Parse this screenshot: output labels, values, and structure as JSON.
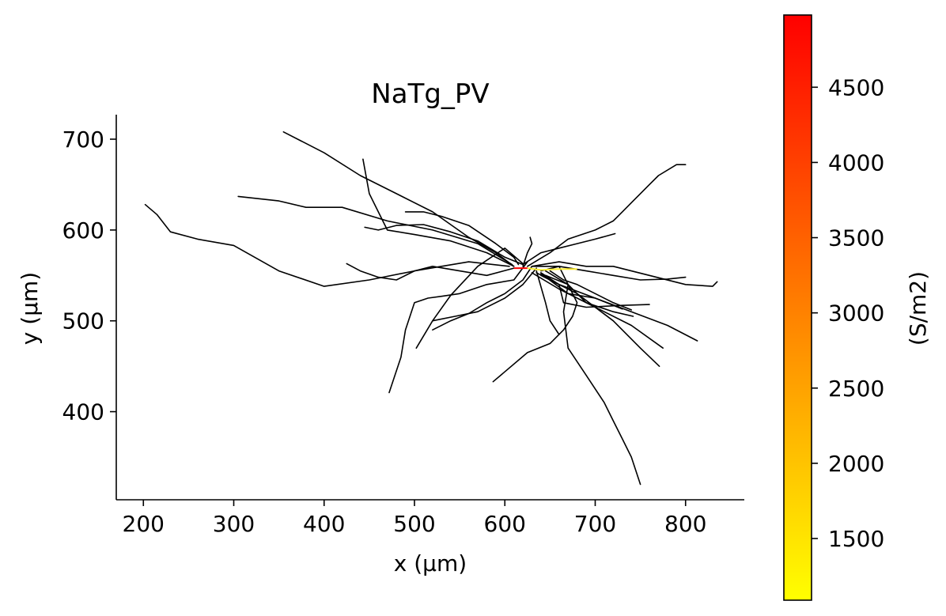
{
  "chart_data": {
    "type": "line",
    "title": "NaTg_PV",
    "xlabel": "x (µm)",
    "ylabel": "y (µm)",
    "xlim": [
      170,
      865
    ],
    "ylim": [
      303,
      727
    ],
    "xticks": [
      200,
      300,
      400,
      500,
      600,
      700,
      800
    ],
    "yticks": [
      400,
      500,
      600,
      700
    ],
    "grid": false,
    "line_color": "#000000",
    "colorbar": {
      "label": "(S/m2)",
      "range": [
        1090,
        4980
      ],
      "ticks": [
        1500,
        2000,
        2500,
        3000,
        3500,
        4000,
        4500
      ],
      "colors": [
        "#ffff00",
        "#ff0000"
      ]
    },
    "axon": [
      {
        "color": "#ff0000",
        "x": [
          610,
          625
        ],
        "y": [
          558,
          558
        ]
      },
      {
        "color": "#ffee33",
        "x": [
          625,
          640,
          660,
          680
        ],
        "y": [
          558,
          556,
          557,
          557
        ]
      }
    ],
    "series": [
      {
        "x": [
          610,
          590,
          560,
          520,
          480,
          440,
          400,
          355
        ],
        "y": [
          560,
          575,
          592,
          620,
          640,
          660,
          685,
          708
        ]
      },
      {
        "x": [
          610,
          580,
          540,
          500,
          470,
          450,
          443
        ],
        "y": [
          560,
          575,
          588,
          595,
          600,
          640,
          678
        ]
      },
      {
        "x": [
          608,
          570,
          520,
          470,
          420,
          380,
          350,
          305
        ],
        "y": [
          562,
          585,
          600,
          610,
          625,
          625,
          632,
          637
        ]
      },
      {
        "x": [
          605,
          560,
          500,
          450,
          400,
          350,
          300,
          260,
          230,
          215,
          202
        ],
        "y": [
          560,
          565,
          555,
          545,
          538,
          555,
          583,
          590,
          598,
          617,
          628
        ]
      },
      {
        "x": [
          610,
          580,
          550,
          520,
          500,
          480,
          460,
          440,
          425
        ],
        "y": [
          558,
          550,
          555,
          560,
          555,
          545,
          548,
          555,
          563
        ]
      },
      {
        "x": [
          620,
          600,
          570,
          540,
          510,
          480,
          460,
          445
        ],
        "y": [
          562,
          570,
          588,
          598,
          606,
          605,
          600,
          603
        ]
      },
      {
        "x": [
          615,
          610,
          590,
          560,
          530,
          510,
          490
        ],
        "y": [
          562,
          570,
          585,
          605,
          615,
          620,
          620
        ]
      },
      {
        "x": [
          620,
          600,
          570,
          540,
          520
        ],
        "y": [
          563,
          580,
          560,
          528,
          500
        ]
      },
      {
        "x": [
          625,
          610,
          580,
          550,
          530,
          515,
          500,
          490,
          485,
          472
        ],
        "y": [
          565,
          545,
          540,
          530,
          527,
          525,
          520,
          490,
          460,
          421
        ]
      },
      {
        "x": [
          630,
          620,
          600,
          580,
          560,
          540,
          520
        ],
        "y": [
          560,
          545,
          530,
          520,
          508,
          500,
          490
        ]
      },
      {
        "x": [
          635,
          620,
          600,
          570,
          545,
          520,
          502
        ],
        "y": [
          558,
          540,
          525,
          510,
          505,
          500,
          470
        ]
      },
      {
        "x": [
          640,
          660,
          670,
          680,
          675,
          665,
          650,
          625,
          587
        ],
        "y": [
          555,
          560,
          540,
          520,
          505,
          490,
          475,
          465,
          433
        ]
      },
      {
        "x": [
          645,
          670,
          665,
          670,
          690,
          710,
          720,
          730,
          740,
          750
        ],
        "y": [
          555,
          540,
          510,
          470,
          440,
          410,
          390,
          370,
          350,
          320
        ]
      },
      {
        "x": [
          625,
          650,
          670,
          700,
          720,
          730,
          750,
          760,
          770,
          790,
          800
        ],
        "y": [
          560,
          575,
          590,
          600,
          610,
          620,
          640,
          650,
          660,
          672,
          672
        ]
      },
      {
        "x": [
          630,
          660,
          690,
          720,
          760,
          800,
          830,
          835
        ],
        "y": [
          560,
          565,
          560,
          560,
          550,
          540,
          538,
          543
        ]
      },
      {
        "x": [
          630,
          660,
          690,
          720,
          750,
          780,
          800
        ],
        "y": [
          560,
          560,
          555,
          550,
          545,
          546,
          548
        ]
      },
      {
        "x": [
          635,
          660,
          700,
          740,
          780,
          813
        ],
        "y": [
          553,
          540,
          525,
          510,
          495,
          478
        ]
      },
      {
        "x": [
          630,
          660,
          700,
          740,
          775
        ],
        "y": [
          553,
          535,
          515,
          495,
          470
        ]
      },
      {
        "x": [
          640,
          680,
          720,
          750,
          771
        ],
        "y": [
          550,
          530,
          500,
          470,
          450
        ]
      },
      {
        "x": [
          640,
          670,
          700,
          730
        ],
        "y": [
          552,
          530,
          525,
          513
        ]
      },
      {
        "x": [
          645,
          670,
          690,
          720,
          742
        ],
        "y": [
          550,
          540,
          520,
          510,
          505
        ]
      },
      {
        "x": [
          620,
          640,
          660,
          680,
          700,
          722
        ],
        "y": [
          562,
          575,
          580,
          585,
          590,
          596
        ]
      },
      {
        "x": [
          640,
          660,
          665,
          690,
          730,
          760
        ],
        "y": [
          553,
          540,
          520,
          515,
          517,
          518
        ]
      },
      {
        "x": [
          650,
          665,
          680,
          700,
          720,
          740
        ],
        "y": [
          555,
          545,
          540,
          530,
          520,
          512
        ]
      },
      {
        "x": [
          635,
          645,
          650,
          660
        ],
        "y": [
          555,
          520,
          500,
          485
        ]
      },
      {
        "x": [
          620,
          625,
          630,
          628
        ],
        "y": [
          560,
          575,
          585,
          592
        ]
      }
    ]
  }
}
